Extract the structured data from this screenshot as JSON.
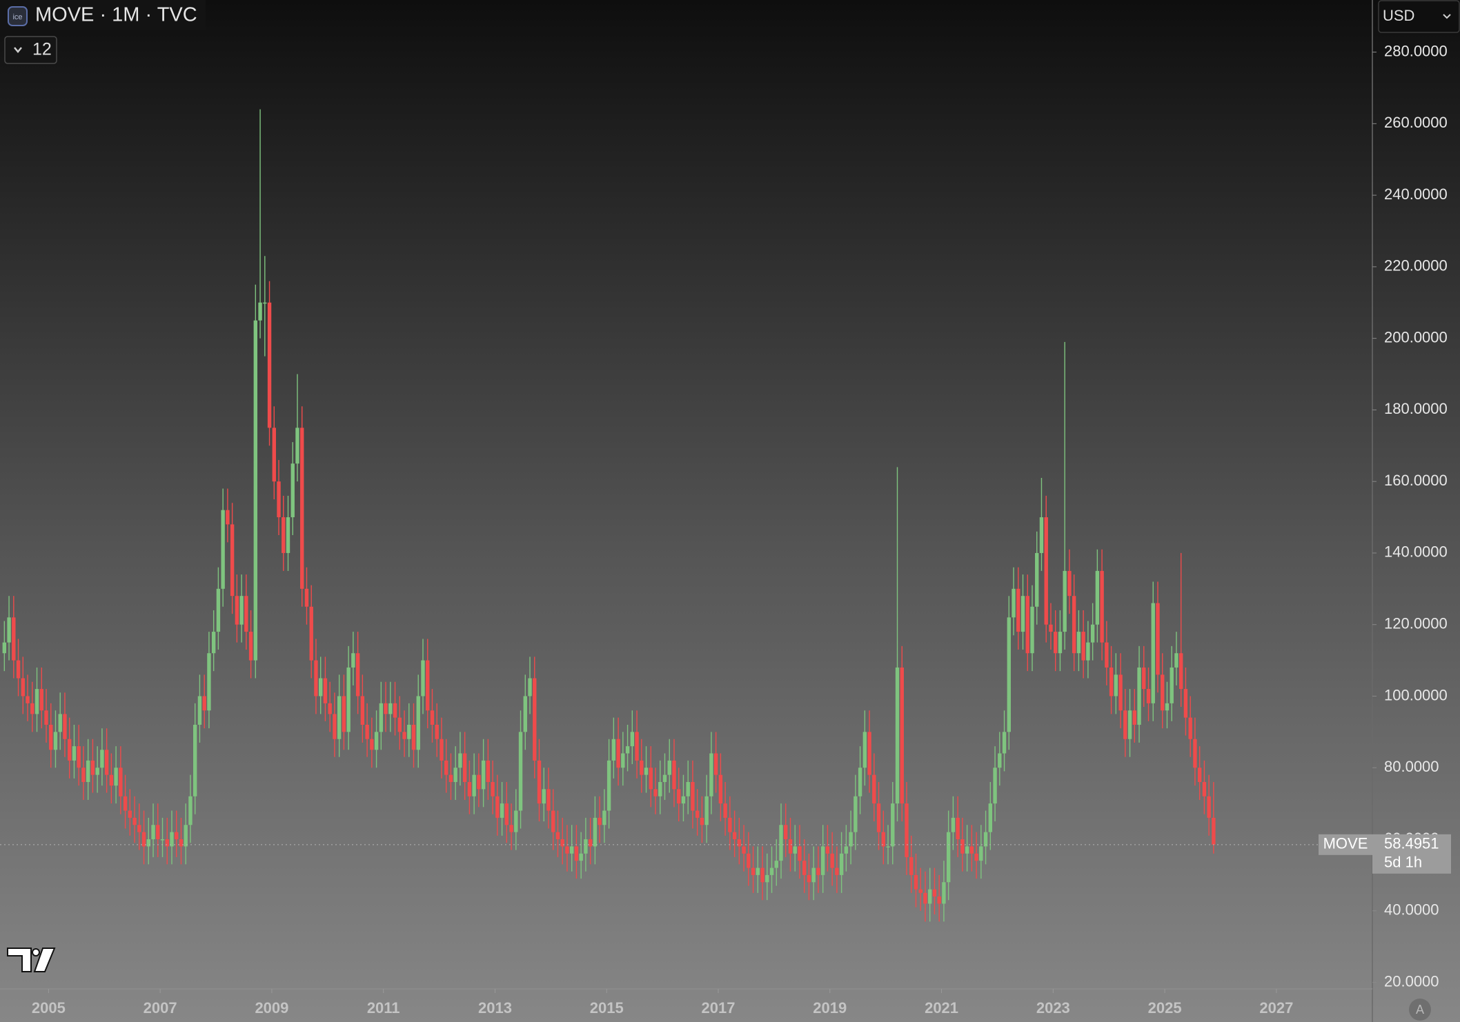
{
  "chart_data": {
    "type": "candlestick",
    "title": "MOVE · 1M · TVC",
    "indicators": "12",
    "currency": "USD",
    "symbol": "MOVE",
    "countdown": "5d 1h",
    "autoscale": "A",
    "up_color": "#7fc47f",
    "down_color": "#ef4b4b",
    "xlim": [
      2004.13,
      2028.72
    ],
    "xticks": [
      2005,
      2007,
      2009,
      2011,
      2013,
      2015,
      2017,
      2019,
      2021,
      2023,
      2025,
      2027
    ],
    "ylim": [
      18.18,
      294.56
    ],
    "yticks": [
      {
        "value": 20,
        "label": "20.0000"
      },
      {
        "value": 40,
        "label": "40.0000"
      },
      {
        "value": 60,
        "label": "60.0000"
      },
      {
        "value": 80,
        "label": "80.0000"
      },
      {
        "value": 100,
        "label": "100.0000"
      },
      {
        "value": 120,
        "label": "120.0000"
      },
      {
        "value": 140,
        "label": "140.0000"
      },
      {
        "value": 160,
        "label": "160.0000"
      },
      {
        "value": 180,
        "label": "180.0000"
      },
      {
        "value": 200,
        "label": "200.0000"
      },
      {
        "value": 220,
        "label": "220.0000"
      },
      {
        "value": 240,
        "label": "240.0000"
      },
      {
        "value": 260,
        "label": "260.0000"
      },
      {
        "value": 280,
        "label": "280.0000"
      }
    ],
    "x": [
      "2004-03",
      "2004-04",
      "2004-05",
      "2004-06",
      "2004-07",
      "2004-08",
      "2004-09",
      "2004-10",
      "2004-11",
      "2004-12",
      "2005-01",
      "2005-02",
      "2005-03",
      "2005-04",
      "2005-05",
      "2005-06",
      "2005-07",
      "2005-08",
      "2005-09",
      "2005-10",
      "2005-11",
      "2005-12",
      "2006-01",
      "2006-02",
      "2006-03",
      "2006-04",
      "2006-05",
      "2006-06",
      "2006-07",
      "2006-08",
      "2006-09",
      "2006-10",
      "2006-11",
      "2006-12",
      "2007-01",
      "2007-02",
      "2007-03",
      "2007-04",
      "2007-05",
      "2007-06",
      "2007-07",
      "2007-08",
      "2007-09",
      "2007-10",
      "2007-11",
      "2007-12",
      "2008-01",
      "2008-02",
      "2008-03",
      "2008-04",
      "2008-05",
      "2008-06",
      "2008-07",
      "2008-08",
      "2008-09",
      "2008-10",
      "2008-11",
      "2008-12",
      "2009-01",
      "2009-02",
      "2009-03",
      "2009-04",
      "2009-05",
      "2009-06",
      "2009-07",
      "2009-08",
      "2009-09",
      "2009-10",
      "2009-11",
      "2009-12",
      "2010-01",
      "2010-02",
      "2010-03",
      "2010-04",
      "2010-05",
      "2010-06",
      "2010-07",
      "2010-08",
      "2010-09",
      "2010-10",
      "2010-11",
      "2010-12",
      "2011-01",
      "2011-02",
      "2011-03",
      "2011-04",
      "2011-05",
      "2011-06",
      "2011-07",
      "2011-08",
      "2011-09",
      "2011-10",
      "2011-11",
      "2011-12",
      "2012-01",
      "2012-02",
      "2012-03",
      "2012-04",
      "2012-05",
      "2012-06",
      "2012-07",
      "2012-08",
      "2012-09",
      "2012-10",
      "2012-11",
      "2012-12",
      "2013-01",
      "2013-02",
      "2013-03",
      "2013-04",
      "2013-05",
      "2013-06",
      "2013-07",
      "2013-08",
      "2013-09",
      "2013-10",
      "2013-11",
      "2013-12",
      "2014-01",
      "2014-02",
      "2014-03",
      "2014-04",
      "2014-05",
      "2014-06",
      "2014-07",
      "2014-08",
      "2014-09",
      "2014-10",
      "2014-11",
      "2014-12",
      "2015-01",
      "2015-02",
      "2015-03",
      "2015-04",
      "2015-05",
      "2015-06",
      "2015-07",
      "2015-08",
      "2015-09",
      "2015-10",
      "2015-11",
      "2015-12",
      "2016-01",
      "2016-02",
      "2016-03",
      "2016-04",
      "2016-05",
      "2016-06",
      "2016-07",
      "2016-08",
      "2016-09",
      "2016-10",
      "2016-11",
      "2016-12",
      "2017-01",
      "2017-02",
      "2017-03",
      "2017-04",
      "2017-05",
      "2017-06",
      "2017-07",
      "2017-08",
      "2017-09",
      "2017-10",
      "2017-11",
      "2017-12",
      "2018-01",
      "2018-02",
      "2018-03",
      "2018-04",
      "2018-05",
      "2018-06",
      "2018-07",
      "2018-08",
      "2018-09",
      "2018-10",
      "2018-11",
      "2018-12",
      "2019-01",
      "2019-02",
      "2019-03",
      "2019-04",
      "2019-05",
      "2019-06",
      "2019-07",
      "2019-08",
      "2019-09",
      "2019-10",
      "2019-11",
      "2019-12",
      "2020-01",
      "2020-02",
      "2020-03",
      "2020-04",
      "2020-05",
      "2020-06",
      "2020-07",
      "2020-08",
      "2020-09",
      "2020-10",
      "2020-11",
      "2020-12",
      "2021-01",
      "2021-02",
      "2021-03",
      "2021-04",
      "2021-05",
      "2021-06",
      "2021-07",
      "2021-08",
      "2021-09",
      "2021-10",
      "2021-11",
      "2021-12",
      "2022-01",
      "2022-02",
      "2022-03",
      "2022-04",
      "2022-05",
      "2022-06",
      "2022-07",
      "2022-08",
      "2022-09",
      "2022-10",
      "2022-11",
      "2022-12",
      "2023-01",
      "2023-02",
      "2023-03",
      "2023-04",
      "2023-05",
      "2023-06",
      "2023-07",
      "2023-08",
      "2023-09",
      "2023-10",
      "2023-11",
      "2023-12",
      "2024-01",
      "2024-02",
      "2024-03",
      "2024-04",
      "2024-05",
      "2024-06",
      "2024-07",
      "2024-08",
      "2024-09",
      "2024-10",
      "2024-11",
      "2024-12",
      "2025-01",
      "2025-02",
      "2025-03",
      "2025-04",
      "2025-05",
      "2025-06",
      "2025-07",
      "2025-08",
      "2025-09",
      "2025-10",
      "2025-11"
    ],
    "open": [
      112,
      115,
      122,
      110,
      105,
      100,
      98,
      95,
      102,
      96,
      92,
      85,
      90,
      95,
      88,
      82,
      86,
      80,
      76,
      82,
      78,
      80,
      85,
      78,
      75,
      80,
      72,
      68,
      66,
      64,
      62,
      58,
      60,
      64,
      60,
      60,
      58,
      62,
      60,
      58,
      64,
      72,
      92,
      100,
      96,
      112,
      118,
      130,
      152,
      148,
      128,
      120,
      128,
      118,
      110,
      205,
      210,
      210,
      175,
      160,
      150,
      140,
      150,
      165,
      175,
      130,
      125,
      110,
      100,
      105,
      98,
      95,
      88,
      100,
      90,
      108,
      112,
      100,
      92,
      88,
      85,
      90,
      98,
      95,
      98,
      94,
      90,
      88,
      92,
      85,
      100,
      110,
      96,
      92,
      88,
      82,
      78,
      76,
      80,
      84,
      76,
      72,
      78,
      74,
      82,
      76,
      72,
      66,
      70,
      64,
      62,
      68,
      90,
      100,
      105,
      82,
      70,
      74,
      68,
      62,
      60,
      58,
      56,
      58,
      54,
      56,
      60,
      58,
      66,
      64,
      68,
      82,
      88,
      80,
      84,
      86,
      90,
      82,
      78,
      80,
      74,
      72,
      76,
      78,
      82,
      74,
      70,
      72,
      76,
      68,
      66,
      64,
      72,
      84,
      78,
      70,
      66,
      62,
      60,
      58,
      56,
      52,
      50,
      52,
      48,
      50,
      52,
      54,
      64,
      60,
      56,
      58,
      54,
      50,
      48,
      52,
      50,
      58,
      56,
      52,
      50,
      56,
      58,
      62,
      72,
      80,
      90,
      78,
      70,
      62,
      58,
      58,
      70,
      108,
      70,
      55,
      50,
      46,
      45,
      42,
      46,
      44,
      42,
      48,
      62,
      66,
      60,
      56,
      58,
      56,
      54,
      58,
      62,
      70,
      80,
      84,
      90,
      122,
      130,
      118,
      128,
      112,
      125,
      140,
      150,
      120,
      118,
      112,
      118,
      135,
      128,
      112,
      118,
      110,
      115,
      120,
      135,
      115,
      108,
      100,
      106,
      96,
      88,
      96,
      92,
      108,
      102,
      98,
      126,
      106,
      96,
      98,
      108,
      112,
      102,
      94,
      88,
      80,
      76,
      72,
      66
    ],
    "high": [
      121,
      128,
      128,
      116,
      111,
      106,
      104,
      108,
      108,
      102,
      98,
      96,
      101,
      101,
      94,
      92,
      92,
      86,
      88,
      88,
      86,
      91,
      91,
      84,
      86,
      86,
      78,
      74,
      72,
      70,
      68,
      66,
      70,
      70,
      66,
      66,
      68,
      68,
      66,
      70,
      78,
      98,
      106,
      106,
      118,
      124,
      136,
      158,
      158,
      154,
      134,
      134,
      134,
      124,
      215,
      264,
      223,
      216,
      181,
      166,
      156,
      156,
      171,
      190,
      181,
      136,
      131,
      116,
      111,
      111,
      104,
      101,
      106,
      106,
      114,
      118,
      118,
      106,
      98,
      94,
      96,
      104,
      104,
      104,
      104,
      100,
      96,
      98,
      98,
      106,
      116,
      116,
      102,
      98,
      94,
      88,
      84,
      86,
      90,
      90,
      82,
      84,
      84,
      88,
      88,
      82,
      78,
      76,
      76,
      70,
      74,
      96,
      106,
      111,
      111,
      88,
      80,
      80,
      74,
      68,
      66,
      64,
      64,
      64,
      62,
      66,
      66,
      72,
      72,
      74,
      88,
      94,
      94,
      90,
      92,
      96,
      96,
      88,
      86,
      86,
      80,
      82,
      84,
      88,
      88,
      80,
      78,
      82,
      82,
      74,
      72,
      78,
      90,
      90,
      84,
      76,
      72,
      68,
      66,
      64,
      62,
      58,
      58,
      58,
      56,
      58,
      60,
      70,
      70,
      66,
      64,
      64,
      60,
      56,
      58,
      58,
      64,
      64,
      62,
      58,
      62,
      64,
      68,
      78,
      86,
      96,
      96,
      84,
      76,
      68,
      64,
      76,
      164,
      114,
      76,
      61,
      56,
      52,
      51,
      52,
      52,
      50,
      54,
      68,
      72,
      72,
      66,
      64,
      64,
      62,
      64,
      68,
      76,
      86,
      90,
      96,
      128,
      136,
      136,
      134,
      134,
      131,
      146,
      161,
      156,
      126,
      124,
      124,
      199,
      141,
      134,
      124,
      124,
      121,
      126,
      141,
      141,
      121,
      114,
      112,
      112,
      102,
      102,
      102,
      114,
      114,
      108,
      132,
      132,
      112,
      104,
      114,
      118,
      140,
      108,
      100,
      94,
      86,
      82,
      78,
      76
    ],
    "low": [
      107,
      110,
      105,
      100,
      95,
      93,
      90,
      90,
      91,
      87,
      80,
      80,
      85,
      83,
      77,
      77,
      75,
      71,
      71,
      73,
      73,
      75,
      73,
      70,
      70,
      67,
      63,
      61,
      59,
      57,
      53,
      53,
      55,
      55,
      55,
      53,
      53,
      55,
      53,
      53,
      59,
      67,
      87,
      91,
      91,
      107,
      113,
      125,
      143,
      123,
      115,
      115,
      113,
      105,
      105,
      200,
      195,
      170,
      155,
      145,
      135,
      135,
      145,
      160,
      125,
      120,
      105,
      95,
      95,
      93,
      90,
      83,
      83,
      85,
      85,
      103,
      95,
      87,
      83,
      80,
      80,
      85,
      90,
      90,
      89,
      85,
      83,
      83,
      80,
      80,
      95,
      91,
      87,
      83,
      77,
      73,
      71,
      71,
      75,
      71,
      67,
      67,
      69,
      69,
      71,
      67,
      61,
      61,
      59,
      57,
      57,
      63,
      85,
      95,
      77,
      65,
      65,
      63,
      57,
      55,
      53,
      51,
      51,
      49,
      49,
      51,
      53,
      53,
      59,
      59,
      63,
      77,
      75,
      75,
      79,
      81,
      77,
      73,
      73,
      69,
      67,
      67,
      71,
      73,
      69,
      65,
      65,
      67,
      63,
      61,
      59,
      59,
      67,
      73,
      65,
      61,
      57,
      55,
      53,
      51,
      47,
      45,
      45,
      43,
      43,
      45,
      47,
      49,
      55,
      51,
      51,
      49,
      45,
      43,
      43,
      45,
      45,
      51,
      47,
      45,
      45,
      51,
      53,
      57,
      67,
      75,
      73,
      65,
      57,
      53,
      53,
      53,
      65,
      65,
      50,
      45,
      41,
      40,
      37,
      37,
      39,
      37,
      37,
      43,
      57,
      55,
      51,
      51,
      51,
      49,
      49,
      53,
      57,
      65,
      75,
      79,
      85,
      117,
      113,
      113,
      107,
      107,
      120,
      135,
      115,
      113,
      107,
      107,
      113,
      123,
      107,
      107,
      105,
      105,
      110,
      115,
      110,
      103,
      95,
      95,
      91,
      83,
      83,
      87,
      87,
      97,
      93,
      93,
      101,
      91,
      91,
      93,
      103,
      97,
      89,
      83,
      75,
      71,
      67,
      61,
      56
    ],
    "close": [
      115,
      122,
      110,
      105,
      100,
      98,
      95,
      102,
      96,
      92,
      85,
      90,
      95,
      88,
      82,
      86,
      80,
      76,
      82,
      78,
      80,
      85,
      78,
      75,
      80,
      72,
      68,
      66,
      64,
      62,
      58,
      60,
      64,
      60,
      60,
      58,
      62,
      60,
      58,
      64,
      72,
      92,
      100,
      96,
      112,
      118,
      130,
      152,
      148,
      128,
      120,
      128,
      118,
      110,
      205,
      210,
      210,
      175,
      160,
      150,
      140,
      150,
      165,
      175,
      130,
      125,
      110,
      100,
      105,
      98,
      95,
      88,
      100,
      90,
      108,
      112,
      100,
      92,
      88,
      85,
      90,
      98,
      95,
      98,
      94,
      90,
      88,
      92,
      85,
      100,
      110,
      96,
      92,
      88,
      82,
      78,
      76,
      80,
      84,
      76,
      72,
      78,
      74,
      82,
      76,
      72,
      66,
      70,
      64,
      62,
      68,
      90,
      100,
      105,
      82,
      70,
      74,
      68,
      62,
      60,
      58,
      56,
      58,
      54,
      56,
      60,
      58,
      66,
      64,
      68,
      82,
      88,
      80,
      84,
      86,
      90,
      82,
      78,
      80,
      74,
      72,
      76,
      78,
      82,
      74,
      70,
      72,
      76,
      68,
      66,
      64,
      72,
      84,
      78,
      70,
      66,
      62,
      60,
      58,
      56,
      52,
      50,
      52,
      48,
      50,
      52,
      54,
      64,
      60,
      56,
      58,
      54,
      50,
      48,
      52,
      50,
      58,
      56,
      52,
      50,
      56,
      58,
      62,
      72,
      80,
      90,
      78,
      70,
      62,
      58,
      58,
      70,
      108,
      70,
      55,
      50,
      46,
      45,
      42,
      46,
      44,
      42,
      48,
      62,
      66,
      60,
      56,
      58,
      56,
      54,
      58,
      62,
      70,
      80,
      84,
      90,
      122,
      130,
      118,
      128,
      112,
      125,
      140,
      150,
      120,
      118,
      112,
      118,
      135,
      128,
      112,
      118,
      110,
      115,
      120,
      135,
      115,
      108,
      100,
      106,
      96,
      88,
      96,
      92,
      108,
      102,
      98,
      126,
      106,
      96,
      98,
      108,
      112,
      102,
      94,
      88,
      80,
      76,
      72,
      66,
      58.4951
    ]
  }
}
